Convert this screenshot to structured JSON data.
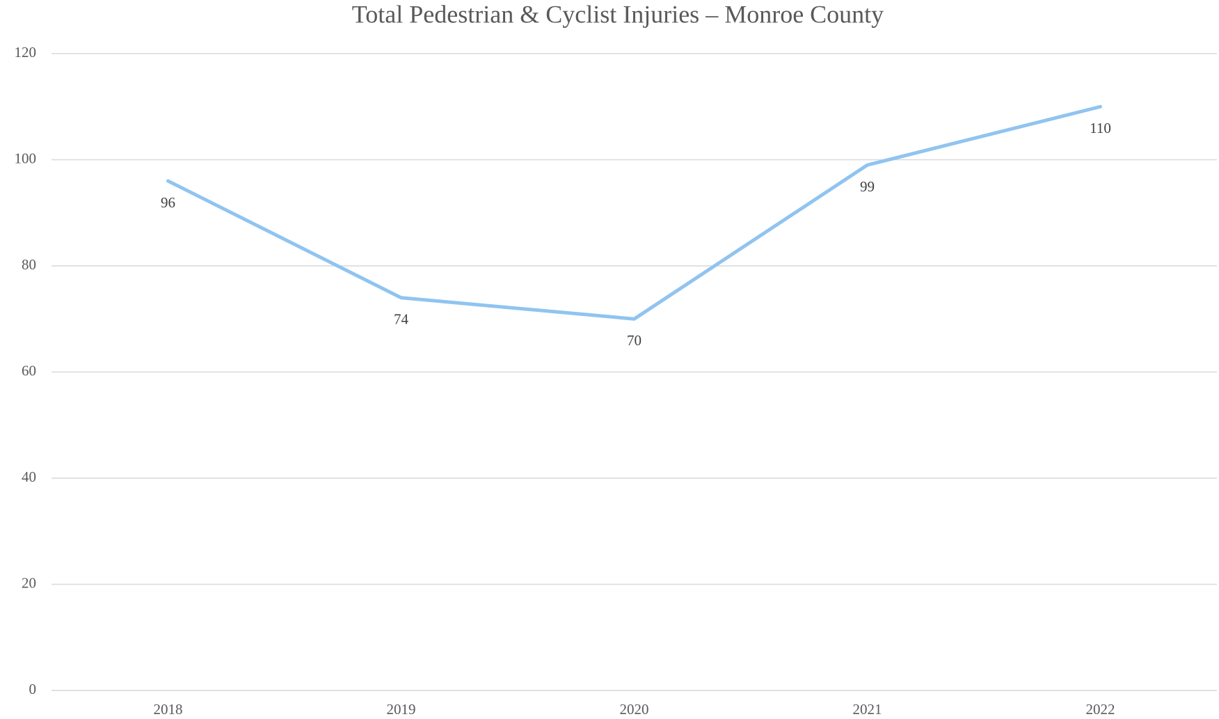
{
  "chart_data": {
    "type": "line",
    "title": "Total Pedestrian & Cyclist Injuries – Monroe County",
    "categories": [
      "2018",
      "2019",
      "2020",
      "2021",
      "2022"
    ],
    "values": [
      96,
      74,
      70,
      99,
      110
    ],
    "color": "#90c4f0",
    "ylim": [
      0,
      120
    ],
    "yticks": [
      0,
      20,
      40,
      60,
      80,
      100,
      120
    ],
    "grid": true
  }
}
